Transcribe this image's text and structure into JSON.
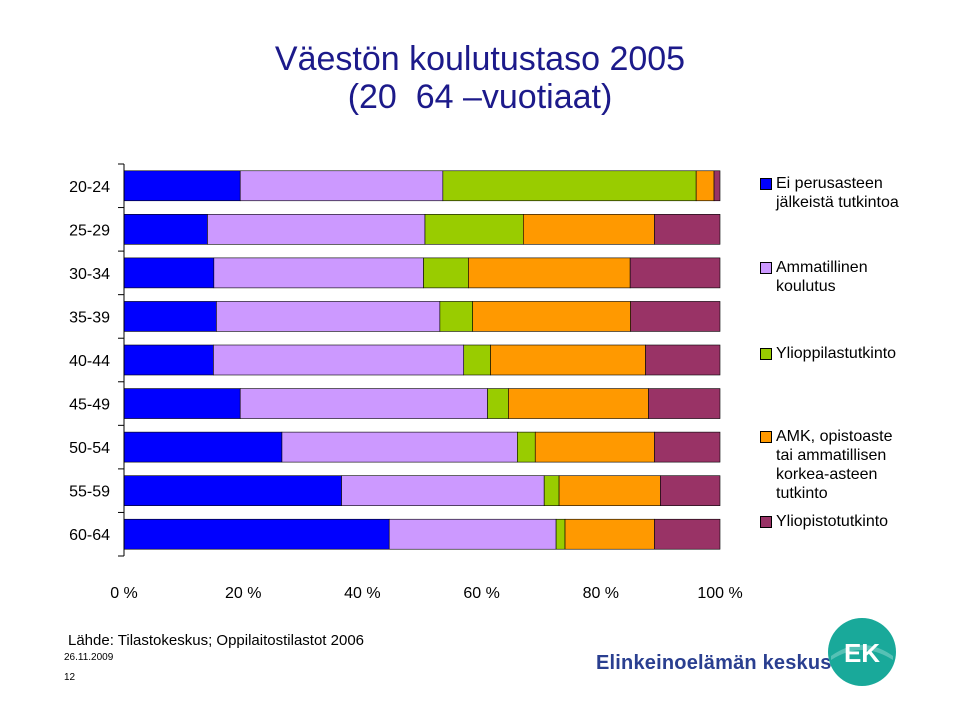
{
  "header": {
    "title_line1": "Väestön koulutustaso 2005",
    "title_line2": "(20  64 –vuotiaat)"
  },
  "chart_data": {
    "type": "bar",
    "orientation": "horizontal",
    "stacked": "percent",
    "categories": [
      "20-24",
      "25-29",
      "30-34",
      "35-39",
      "40-44",
      "45-49",
      "50-54",
      "55-59",
      "60-64"
    ],
    "series": [
      {
        "name": "Ei perusasteen jälkeistä tutkintoa",
        "color": "#0000ff",
        "values": [
          19.5,
          14,
          15,
          15.5,
          15,
          19.5,
          26.5,
          36.5,
          44.5
        ]
      },
      {
        "name": "Ammatillinen koulutus",
        "color": "#cc99ff",
        "values": [
          34,
          36.5,
          35,
          37.5,
          42,
          41.5,
          39.5,
          34,
          28
        ]
      },
      {
        "name": "Ylioppilastutkinto",
        "color": "#99cc00",
        "values": [
          42.5,
          16.5,
          7.5,
          5.5,
          4.5,
          3.5,
          3,
          2.5,
          1.5
        ]
      },
      {
        "name": "AMK, opistoaste tai ammatillisen korkea-asteen tutkinto",
        "color": "#ff9900",
        "values": [
          3,
          22,
          27,
          26.5,
          26,
          23.5,
          20,
          17,
          15
        ]
      },
      {
        "name": "Yliopistotutkinto",
        "color": "#993366",
        "values": [
          1,
          11,
          15,
          15,
          12.5,
          12,
          11,
          10,
          11
        ]
      }
    ],
    "x_ticks": [
      "0 %",
      "20 %",
      "40 %",
      "60 %",
      "80 %",
      "100 %"
    ],
    "xlim": [
      0,
      100
    ],
    "legend": "right",
    "grid": false
  },
  "legend": {
    "items": [
      {
        "line1": "Ei perusasteen",
        "line2": "jälkeistä tutkintoa",
        "line3": "",
        "line4": "",
        "color": "#0000ff"
      },
      {
        "line1": "Ammatillinen",
        "line2": "koulutus",
        "line3": "",
        "line4": "",
        "color": "#cc99ff"
      },
      {
        "line1": "Ylioppilastutkinto",
        "line2": "",
        "line3": "",
        "line4": "",
        "color": "#99cc00"
      },
      {
        "line1": "AMK, opistoaste",
        "line2": "tai ammatillisen",
        "line3": "korkea-asteen",
        "line4": "tutkinto",
        "color": "#ff9900"
      },
      {
        "line1": "Yliopistotutkinto",
        "line2": "",
        "line3": "",
        "line4": "",
        "color": "#993366"
      }
    ]
  },
  "footer": {
    "source": "Lähde: Tilastokeskus; Oppilaitostilastot 2006",
    "date": "26.11.2009",
    "page": "12",
    "organization": "Elinkeinoelämän keskusliitto",
    "logo_text": "EK"
  }
}
